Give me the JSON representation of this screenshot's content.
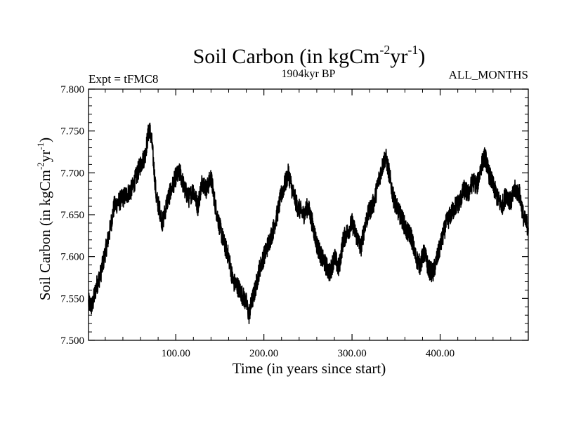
{
  "chart_data": {
    "type": "line",
    "title_main": "Soil Carbon (in kgCm",
    "title_sup1": "-2",
    "title_mid": "yr",
    "title_sup2": "-1",
    "title_end": ")",
    "subtitle": "1904kyr BP",
    "left_label": "Expt = tFMC8",
    "right_label": "ALL_MONTHS",
    "xlabel": "Time (in years since start)",
    "ylabel_main": "Soil Carbon (in kgCm",
    "ylabel_sup1": "-2",
    "ylabel_mid": "yr",
    "ylabel_sup2": "-1",
    "ylabel_end": ")",
    "xlim": [
      1,
      500
    ],
    "ylim": [
      7.5,
      7.8
    ],
    "x_ticks": [
      100,
      200,
      300,
      400
    ],
    "x_tick_labels": [
      "100.00",
      "200.00",
      "300.00",
      "400.00"
    ],
    "y_ticks": [
      7.5,
      7.55,
      7.6,
      7.65,
      7.7,
      7.75,
      7.8
    ],
    "y_tick_labels": [
      "7.500",
      "7.550",
      "7.600",
      "7.650",
      "7.700",
      "7.750",
      "7.800"
    ],
    "series": [
      {
        "name": "Soil Carbon",
        "color": "#000000",
        "noise_amplitude": 0.012,
        "anchors": [
          [
            1,
            7.545
          ],
          [
            5,
            7.54
          ],
          [
            10,
            7.565
          ],
          [
            15,
            7.58
          ],
          [
            20,
            7.605
          ],
          [
            25,
            7.63
          ],
          [
            30,
            7.66
          ],
          [
            40,
            7.67
          ],
          [
            50,
            7.68
          ],
          [
            55,
            7.695
          ],
          [
            60,
            7.71
          ],
          [
            65,
            7.72
          ],
          [
            70,
            7.755
          ],
          [
            73,
            7.735
          ],
          [
            78,
            7.67
          ],
          [
            82,
            7.655
          ],
          [
            85,
            7.64
          ],
          [
            90,
            7.665
          ],
          [
            95,
            7.68
          ],
          [
            100,
            7.695
          ],
          [
            105,
            7.7
          ],
          [
            110,
            7.68
          ],
          [
            115,
            7.67
          ],
          [
            120,
            7.68
          ],
          [
            125,
            7.66
          ],
          [
            130,
            7.69
          ],
          [
            135,
            7.68
          ],
          [
            140,
            7.695
          ],
          [
            145,
            7.66
          ],
          [
            150,
            7.635
          ],
          [
            155,
            7.615
          ],
          [
            160,
            7.6
          ],
          [
            165,
            7.57
          ],
          [
            170,
            7.565
          ],
          [
            175,
            7.555
          ],
          [
            180,
            7.545
          ],
          [
            183,
            7.53
          ],
          [
            186,
            7.545
          ],
          [
            190,
            7.56
          ],
          [
            195,
            7.585
          ],
          [
            200,
            7.6
          ],
          [
            205,
            7.615
          ],
          [
            210,
            7.63
          ],
          [
            215,
            7.65
          ],
          [
            220,
            7.675
          ],
          [
            225,
            7.69
          ],
          [
            228,
            7.7
          ],
          [
            232,
            7.68
          ],
          [
            238,
            7.66
          ],
          [
            245,
            7.65
          ],
          [
            250,
            7.66
          ],
          [
            255,
            7.64
          ],
          [
            260,
            7.615
          ],
          [
            265,
            7.6
          ],
          [
            270,
            7.59
          ],
          [
            275,
            7.58
          ],
          [
            280,
            7.6
          ],
          [
            285,
            7.585
          ],
          [
            290,
            7.62
          ],
          [
            295,
            7.63
          ],
          [
            300,
            7.64
          ],
          [
            305,
            7.625
          ],
          [
            310,
            7.61
          ],
          [
            315,
            7.64
          ],
          [
            320,
            7.655
          ],
          [
            325,
            7.665
          ],
          [
            330,
            7.69
          ],
          [
            335,
            7.71
          ],
          [
            338,
            7.72
          ],
          [
            342,
            7.7
          ],
          [
            347,
            7.67
          ],
          [
            352,
            7.655
          ],
          [
            357,
            7.645
          ],
          [
            362,
            7.63
          ],
          [
            367,
            7.625
          ],
          [
            372,
            7.6
          ],
          [
            377,
            7.59
          ],
          [
            382,
            7.605
          ],
          [
            387,
            7.585
          ],
          [
            392,
            7.58
          ],
          [
            397,
            7.6
          ],
          [
            402,
            7.62
          ],
          [
            407,
            7.64
          ],
          [
            412,
            7.65
          ],
          [
            417,
            7.66
          ],
          [
            422,
            7.665
          ],
          [
            427,
            7.68
          ],
          [
            432,
            7.675
          ],
          [
            437,
            7.69
          ],
          [
            442,
            7.685
          ],
          [
            447,
            7.71
          ],
          [
            451,
            7.72
          ],
          [
            455,
            7.7
          ],
          [
            460,
            7.685
          ],
          [
            465,
            7.67
          ],
          [
            470,
            7.66
          ],
          [
            475,
            7.675
          ],
          [
            480,
            7.665
          ],
          [
            485,
            7.68
          ],
          [
            490,
            7.675
          ],
          [
            495,
            7.645
          ],
          [
            500,
            7.635
          ]
        ]
      }
    ]
  }
}
